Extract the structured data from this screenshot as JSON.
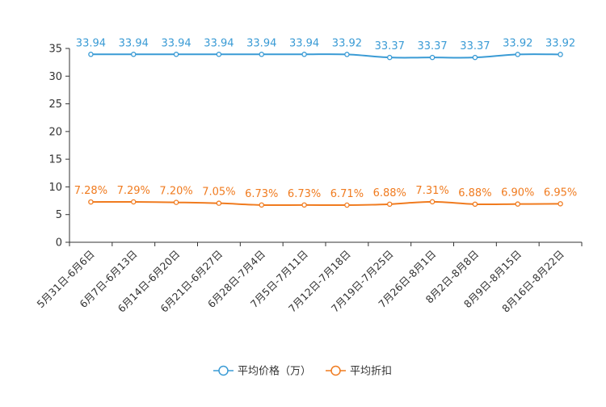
{
  "chart_data": {
    "type": "line",
    "categories": [
      "5月31日-6月6日",
      "6月7日-6月13日",
      "6月14日-6月20日",
      "6月21日-6月27日",
      "6月28日-7月4日",
      "7月5日-7月11日",
      "7月12日-7月18日",
      "7月19日-7月25日",
      "7月26日-8月1日",
      "8月2日-8月8日",
      "8月9日-8月15日",
      "8月16日-8月22日"
    ],
    "series": [
      {
        "name": "平均价格（万）",
        "color": "#3a9bd5",
        "values": [
          33.94,
          33.94,
          33.94,
          33.94,
          33.94,
          33.94,
          33.92,
          33.37,
          33.37,
          33.37,
          33.92,
          33.92
        ],
        "labels": [
          "33.94",
          "33.94",
          "33.94",
          "33.94",
          "33.94",
          "33.94",
          "33.92",
          "33.37",
          "33.37",
          "33.37",
          "33.92",
          "33.92"
        ]
      },
      {
        "name": "平均折扣",
        "color": "#f07b1f",
        "values": [
          7.28,
          7.29,
          7.2,
          7.05,
          6.73,
          6.73,
          6.71,
          6.88,
          7.31,
          6.88,
          6.9,
          6.95
        ],
        "labels": [
          "7.28%",
          "7.29%",
          "7.20%",
          "7.05%",
          "6.73%",
          "6.73%",
          "6.71%",
          "6.88%",
          "7.31%",
          "6.88%",
          "6.90%",
          "6.95%"
        ]
      }
    ],
    "ylim": [
      0,
      35
    ],
    "yticks": [
      0,
      5,
      10,
      15,
      20,
      25,
      30,
      35
    ],
    "xlabel": "",
    "ylabel": "",
    "legend_position": "bottom-center",
    "grid": false
  }
}
